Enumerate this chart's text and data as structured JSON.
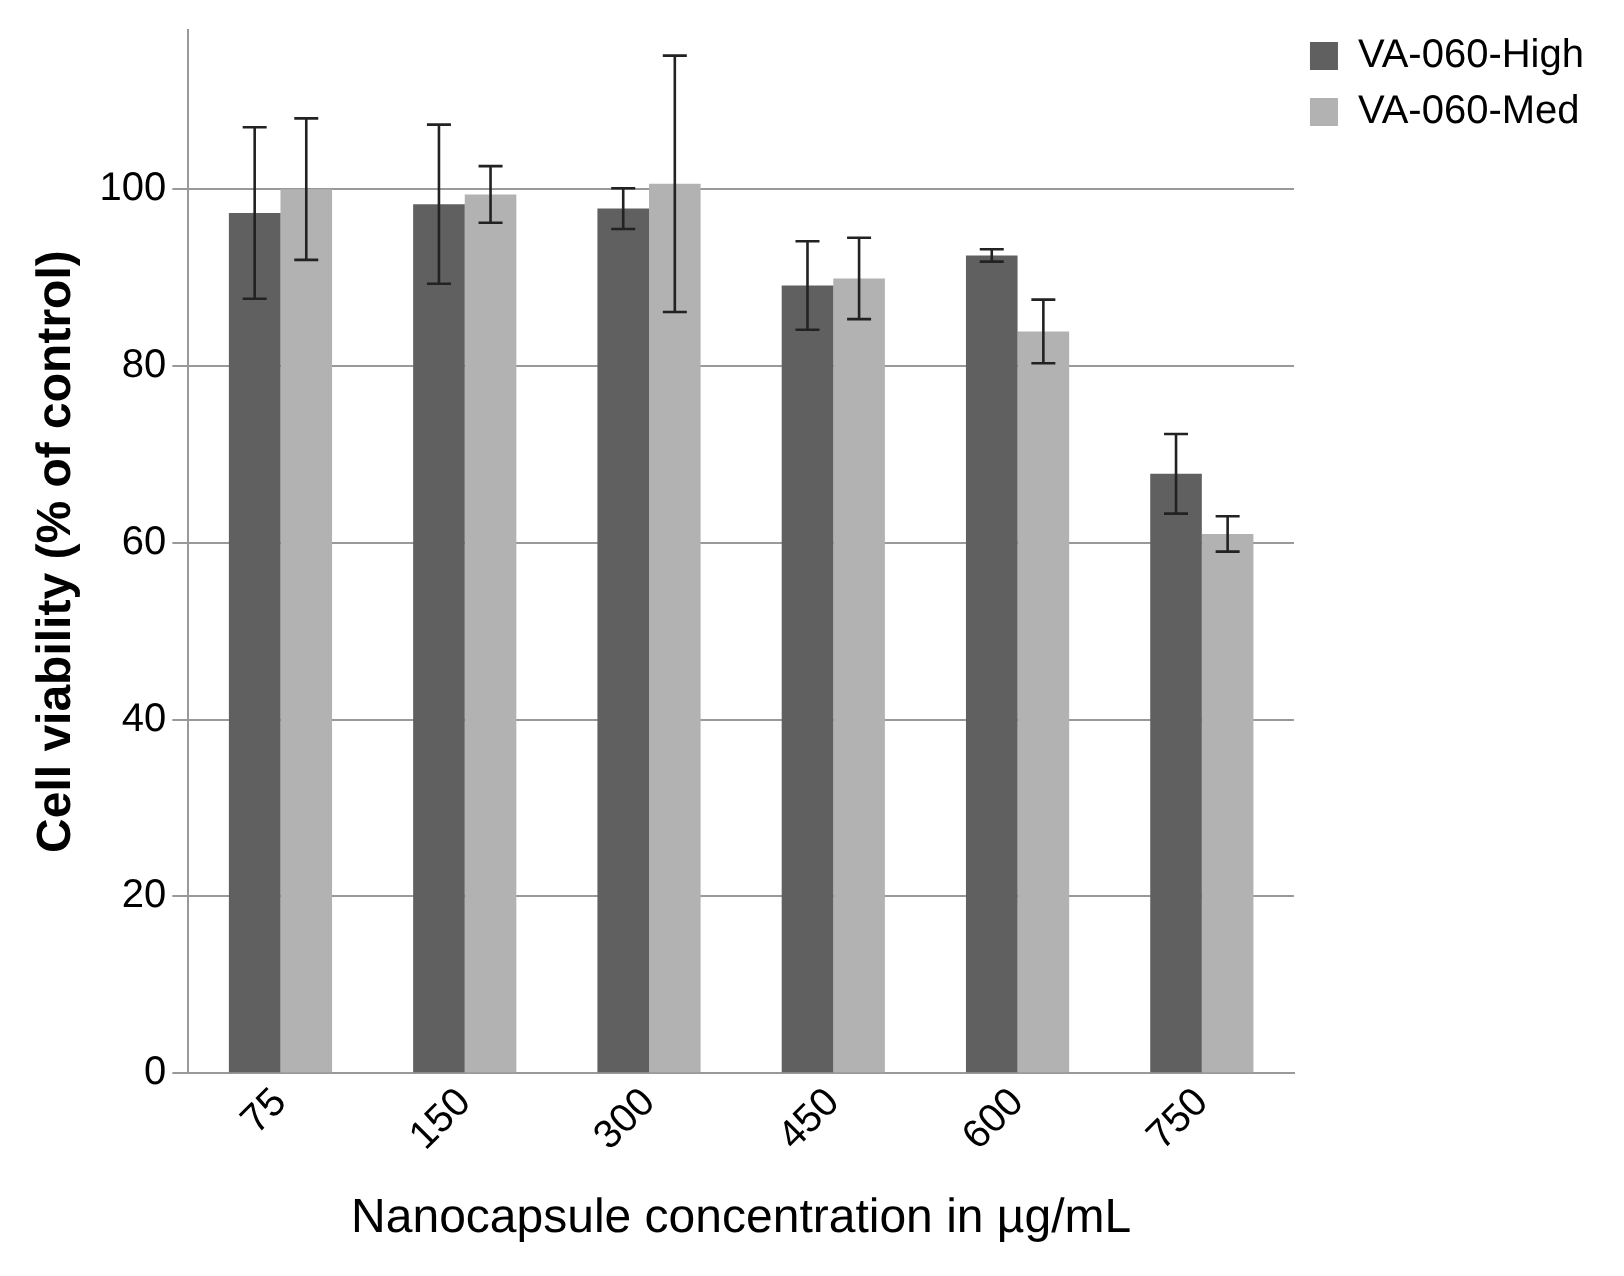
{
  "chart_data": {
    "type": "bar",
    "xlabel": "Nanocapsule concentration in µg/mL",
    "ylabel": "Cell viability (% of control)",
    "categories": [
      "75",
      "150",
      "300",
      "450",
      "600",
      "750"
    ],
    "series": [
      {
        "name": "VA-060-High",
        "color": "#606060",
        "values": [
          97.3,
          98.3,
          97.8,
          89.1,
          92.5,
          67.8
        ],
        "errors": [
          9.7,
          9,
          2.3,
          5,
          0.7,
          4.5
        ]
      },
      {
        "name": "VA-060-Med",
        "color": "#b2b2b2",
        "values": [
          100,
          99.4,
          100.6,
          89.9,
          83.9,
          61
        ],
        "errors": [
          8,
          3.2,
          14.5,
          4.6,
          3.6,
          2
        ]
      }
    ],
    "ylim": [
      0,
      118
    ],
    "yticks": [
      0,
      20,
      40,
      60,
      80,
      100
    ],
    "grid": "y",
    "legend": "top right"
  }
}
